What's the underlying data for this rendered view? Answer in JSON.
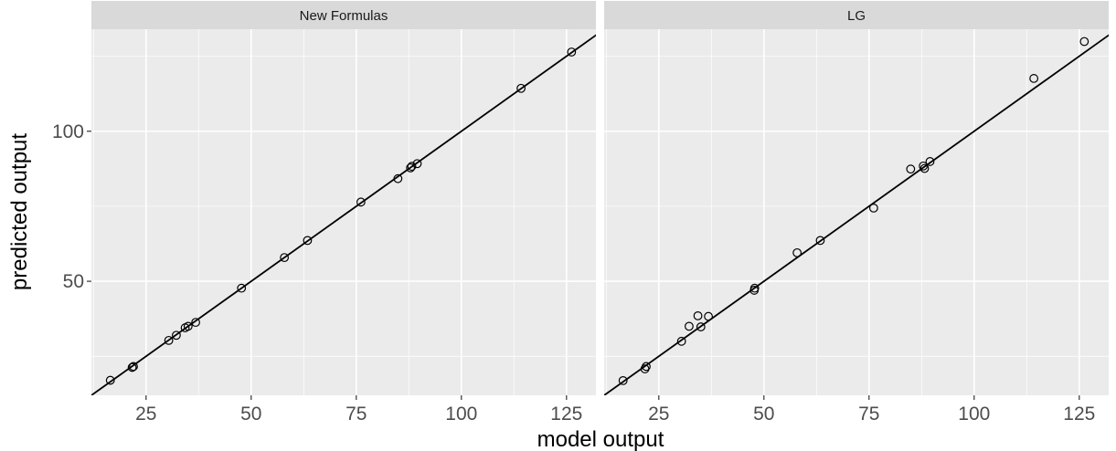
{
  "chart_data": {
    "type": "scatter",
    "xlabel": "model output",
    "ylabel": "predicted output",
    "x_ticks": [
      25,
      50,
      75,
      100,
      125
    ],
    "y_ticks": [
      50,
      100
    ],
    "xlim": [
      12,
      132
    ],
    "ylim": [
      12,
      134
    ],
    "grid": true,
    "fit_line": {
      "slope": 1,
      "intercept": 0
    },
    "panels": [
      {
        "title": "New Formulas",
        "points": [
          {
            "x": 16.5,
            "y": 17.0
          },
          {
            "x": 21.7,
            "y": 21.3
          },
          {
            "x": 22.0,
            "y": 21.6
          },
          {
            "x": 30.4,
            "y": 30.3
          },
          {
            "x": 32.2,
            "y": 32.0
          },
          {
            "x": 34.3,
            "y": 34.5
          },
          {
            "x": 35.0,
            "y": 35.0
          },
          {
            "x": 36.8,
            "y": 36.3
          },
          {
            "x": 47.7,
            "y": 47.7
          },
          {
            "x": 57.9,
            "y": 57.9
          },
          {
            "x": 63.4,
            "y": 63.6
          },
          {
            "x": 76.1,
            "y": 76.4
          },
          {
            "x": 84.9,
            "y": 84.2
          },
          {
            "x": 87.9,
            "y": 87.8
          },
          {
            "x": 88.2,
            "y": 88.3
          },
          {
            "x": 89.5,
            "y": 89.2
          },
          {
            "x": 114.2,
            "y": 114.3
          },
          {
            "x": 126.2,
            "y": 126.4
          }
        ]
      },
      {
        "title": "LG",
        "points": [
          {
            "x": 16.5,
            "y": 16.9
          },
          {
            "x": 21.7,
            "y": 20.8
          },
          {
            "x": 22.0,
            "y": 21.6
          },
          {
            "x": 30.4,
            "y": 30.0
          },
          {
            "x": 32.2,
            "y": 35.0
          },
          {
            "x": 34.3,
            "y": 38.5
          },
          {
            "x": 35.0,
            "y": 34.8
          },
          {
            "x": 36.8,
            "y": 38.3
          },
          {
            "x": 47.7,
            "y": 47.0
          },
          {
            "x": 47.8,
            "y": 47.7
          },
          {
            "x": 57.9,
            "y": 59.5
          },
          {
            "x": 63.4,
            "y": 63.6
          },
          {
            "x": 76.1,
            "y": 74.4
          },
          {
            "x": 84.9,
            "y": 87.4
          },
          {
            "x": 87.9,
            "y": 88.4
          },
          {
            "x": 88.2,
            "y": 87.6
          },
          {
            "x": 89.5,
            "y": 89.9
          },
          {
            "x": 114.2,
            "y": 117.6
          },
          {
            "x": 126.2,
            "y": 129.9
          }
        ]
      }
    ]
  }
}
